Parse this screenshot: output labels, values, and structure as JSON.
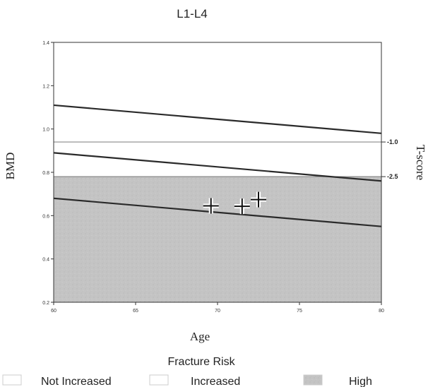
{
  "chart_data": {
    "type": "line",
    "title": "L1-L4",
    "xlabel": "Age",
    "ylabel": "BMD",
    "y2label": "T-score",
    "xlim": [
      60,
      80
    ],
    "ylim": [
      0.2,
      1.4
    ],
    "xticks": [
      60,
      65,
      70,
      75,
      80
    ],
    "yticks": [
      0.2,
      0.4,
      0.6,
      0.8,
      1.0,
      1.2,
      1.4
    ],
    "xtick_labels": [
      "60",
      "65",
      "70",
      "75",
      "80"
    ],
    "ytick_labels": [
      "0.2",
      "0.4",
      "0.6",
      "0.8",
      "1.0",
      "1.2",
      "1.4"
    ],
    "tscore_thresholds": [
      {
        "label": "-1.0",
        "value": 0.94
      },
      {
        "label": "-2.5",
        "value": 0.78
      }
    ],
    "lines": [
      {
        "x": [
          60,
          80
        ],
        "y": [
          1.11,
          0.98
        ]
      },
      {
        "x": [
          60,
          80
        ],
        "y": [
          0.89,
          0.76
        ]
      },
      {
        "x": [
          60,
          80
        ],
        "y": [
          0.68,
          0.55
        ]
      }
    ],
    "points": [
      {
        "x": 69.6,
        "y": 0.645
      },
      {
        "x": 71.5,
        "y": 0.643
      },
      {
        "x": 72.5,
        "y": 0.674
      }
    ],
    "legend": {
      "title": "Fracture Risk",
      "entries": [
        {
          "label": "Not Increased",
          "color": "#ffffff"
        },
        {
          "label": "Increased",
          "color": "#ffffff"
        },
        {
          "label": "High",
          "color": "#c4c4c4"
        }
      ]
    },
    "colors": {
      "high_risk_region": "#c4c4c4",
      "line": "#2a2a2a"
    }
  }
}
